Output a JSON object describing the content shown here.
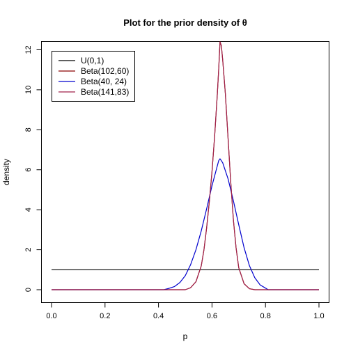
{
  "chart_data": {
    "type": "line",
    "title": "Plot for the prior density of θ",
    "xlabel": "p",
    "ylabel": "density",
    "xlim": [
      0,
      1
    ],
    "ylim": [
      0,
      12.4
    ],
    "xticks": [
      "0.0",
      "0.2",
      "0.4",
      "0.6",
      "0.8",
      "1.0"
    ],
    "yticks": [
      "0",
      "2",
      "4",
      "6",
      "8",
      "10",
      "12"
    ],
    "grid": false,
    "legend_position": "top-left",
    "series": [
      {
        "name": "U(0,1)",
        "color": "#000000",
        "x": [
          0,
          1
        ],
        "y": [
          1,
          1
        ]
      },
      {
        "name": "Beta(102,60)",
        "color": "#8b0000",
        "x": [
          0.0,
          0.5,
          0.52,
          0.54,
          0.56,
          0.57,
          0.58,
          0.59,
          0.6,
          0.61,
          0.62,
          0.625,
          0.63,
          0.635,
          0.64,
          0.65,
          0.66,
          0.67,
          0.68,
          0.69,
          0.7,
          0.72,
          0.74,
          0.76,
          1.0
        ],
        "y": [
          0.0,
          0.0,
          0.1,
          0.4,
          1.2,
          2.0,
          3.1,
          4.4,
          5.9,
          7.7,
          9.8,
          11.0,
          12.4,
          12.2,
          11.5,
          9.8,
          7.6,
          5.4,
          3.5,
          2.1,
          1.1,
          0.3,
          0.05,
          0.0,
          0.0
        ]
      },
      {
        "name": "Beta(40, 24)",
        "color": "#0000cd",
        "x": [
          0.0,
          0.42,
          0.44,
          0.46,
          0.48,
          0.5,
          0.52,
          0.54,
          0.56,
          0.58,
          0.6,
          0.62,
          0.625,
          0.63,
          0.64,
          0.66,
          0.68,
          0.7,
          0.72,
          0.74,
          0.76,
          0.78,
          0.8,
          0.81,
          1.0
        ],
        "y": [
          0.0,
          0.0,
          0.07,
          0.16,
          0.36,
          0.7,
          1.25,
          2.0,
          2.95,
          4.05,
          5.2,
          6.2,
          6.45,
          6.55,
          6.35,
          5.55,
          4.45,
          3.25,
          2.1,
          1.2,
          0.6,
          0.24,
          0.08,
          0.0,
          0.0
        ]
      },
      {
        "name": "Beta(141,83)",
        "color": "#a0224a",
        "x": [
          0.0,
          0.5,
          0.52,
          0.54,
          0.56,
          0.57,
          0.58,
          0.59,
          0.6,
          0.61,
          0.62,
          0.625,
          0.63,
          0.635,
          0.64,
          0.65,
          0.66,
          0.67,
          0.68,
          0.69,
          0.7,
          0.72,
          0.74,
          0.76,
          1.0
        ],
        "y": [
          0.0,
          0.0,
          0.1,
          0.4,
          1.2,
          2.0,
          3.1,
          4.4,
          5.9,
          7.7,
          9.8,
          11.0,
          12.4,
          12.2,
          11.5,
          9.8,
          7.6,
          5.4,
          3.5,
          2.1,
          1.1,
          0.3,
          0.05,
          0.0,
          0.0
        ]
      }
    ]
  }
}
